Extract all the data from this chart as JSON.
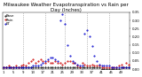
{
  "title": "Milwaukee Weather Evapotranspiration vs Rain per Day (Inches)",
  "background_color": "#ffffff",
  "plot_bg_color": "#ffffff",
  "grid_color": "#888888",
  "num_points": 52,
  "et_color": "#0000cc",
  "rain_color": "#cc0000",
  "base_color": "#000000",
  "et_values": [
    0.01,
    0.01,
    0.01,
    0.01,
    0.01,
    0.01,
    0.01,
    0.01,
    0.01,
    0.01,
    0.01,
    0.01,
    0.02,
    0.02,
    0.02,
    0.03,
    0.04,
    0.05,
    0.06,
    0.07,
    0.07,
    0.06,
    0.05,
    0.3,
    0.34,
    0.28,
    0.15,
    0.08,
    0.05,
    0.04,
    0.03,
    0.02,
    0.02,
    0.22,
    0.24,
    0.2,
    0.14,
    0.08,
    0.05,
    0.03,
    0.02,
    0.02,
    0.02,
    0.02,
    0.01,
    0.01,
    0.01,
    0.01,
    0.01,
    0.01,
    0.01,
    0.01
  ],
  "rain_values": [
    0.01,
    0.01,
    0.02,
    0.01,
    0.01,
    0.02,
    0.01,
    0.02,
    0.03,
    0.02,
    0.04,
    0.05,
    0.06,
    0.04,
    0.05,
    0.06,
    0.05,
    0.04,
    0.05,
    0.04,
    0.04,
    0.05,
    0.04,
    0.04,
    0.03,
    0.04,
    0.05,
    0.05,
    0.04,
    0.04,
    0.02,
    0.01,
    0.04,
    0.03,
    0.02,
    0.02,
    0.03,
    0.02,
    0.02,
    0.02,
    0.01,
    0.01,
    0.01,
    0.01,
    0.01,
    0.01,
    0.01,
    0.02,
    0.03,
    0.01,
    0.04,
    0.03
  ],
  "base_values": [
    0.01,
    0.01,
    0.01,
    0.01,
    0.01,
    0.01,
    0.01,
    0.01,
    0.01,
    0.01,
    0.01,
    0.01,
    0.01,
    0.01,
    0.01,
    0.01,
    0.01,
    0.01,
    0.01,
    0.01,
    0.01,
    0.01,
    0.01,
    0.01,
    0.01,
    0.01,
    0.01,
    0.01,
    0.01,
    0.01,
    0.01,
    0.01,
    0.01,
    0.01,
    0.01,
    0.01,
    0.01,
    0.01,
    0.01,
    0.01,
    0.0,
    0.0,
    0.0,
    0.0,
    0.0,
    0.0,
    0.0,
    0.0,
    0.01,
    0.01,
    0.01,
    0.01
  ],
  "vline_positions": [
    8,
    17,
    25,
    34,
    43
  ],
  "ylim": [
    0.0,
    0.35
  ],
  "yticks": [
    0.0,
    0.05,
    0.1,
    0.15,
    0.2,
    0.25,
    0.3,
    0.35
  ],
  "ytick_labels": [
    "0.00",
    "0.05",
    "0.10",
    "0.15",
    "0.20",
    "0.25",
    "0.30",
    "0.35"
  ],
  "title_fontsize": 4.0,
  "tick_fontsize": 2.8,
  "legend_fontsize": 2.8,
  "marker_size": 1.0,
  "legend_entries": [
    "ET",
    "Rain",
    "Base"
  ]
}
